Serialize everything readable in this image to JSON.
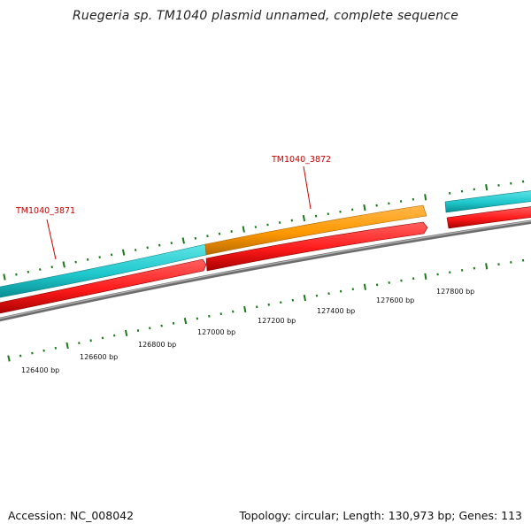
{
  "title": "Ruegeria sp. TM1040 plasmid unnamed, complete sequence",
  "footer": {
    "accession": "Accession: NC_008042",
    "summary": "Topology: circular; Length: 130,973 bp; Genes: 113"
  },
  "genes": [
    {
      "name": "TM1040_3871"
    },
    {
      "name": "TM1040_3872"
    }
  ],
  "scale": {
    "unit": "bp",
    "labels": [
      "126400 bp",
      "126600 bp",
      "126800 bp",
      "127000 bp",
      "127200 bp",
      "127400 bp",
      "127600 bp",
      "127800 bp"
    ]
  },
  "colors": {
    "cds_forward": "#1ec8cc",
    "cds_highlight": "#ff9900",
    "cds_reverse": "#ff1a1a",
    "backbone": "#888888",
    "ticks": "#1a7a1a",
    "labels": "#cc0000"
  }
}
